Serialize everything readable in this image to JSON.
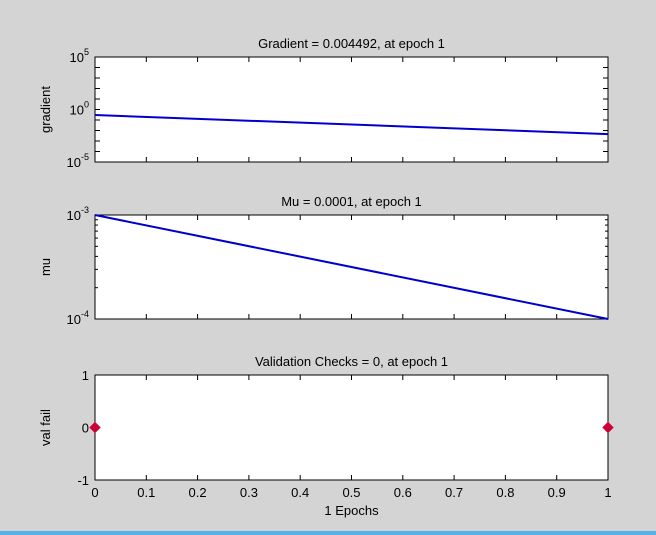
{
  "chart_data": [
    {
      "type": "line",
      "title": "Gradient = 0.004492, at epoch 1",
      "xlabel": "",
      "ylabel": "gradient",
      "yscale": "log",
      "xlim": [
        0,
        1
      ],
      "ylim": [
        1e-05,
        100000.0
      ],
      "yticks": [
        {
          "value": 1e-05,
          "base": "10",
          "exp": "-5"
        },
        {
          "value": 1,
          "base": "10",
          "exp": "0"
        },
        {
          "value": 100000.0,
          "base": "10",
          "exp": "5"
        }
      ],
      "series": [
        {
          "color": "#0000cc",
          "x": [
            0,
            1
          ],
          "y": [
            0.3,
            0.004492
          ]
        }
      ],
      "grid": false
    },
    {
      "type": "line",
      "title": "Mu = 0.0001, at epoch 1",
      "xlabel": "",
      "ylabel": "mu",
      "yscale": "log",
      "xlim": [
        0,
        1
      ],
      "ylim": [
        0.0001,
        0.001
      ],
      "yticks": [
        {
          "value": 0.0001,
          "base": "10",
          "exp": "-4"
        },
        {
          "value": 0.001,
          "base": "10",
          "exp": "-3"
        }
      ],
      "series": [
        {
          "color": "#0000cc",
          "x": [
            0,
            1
          ],
          "y": [
            0.001,
            0.0001
          ]
        }
      ],
      "grid": false
    },
    {
      "type": "scatter",
      "title": "Validation Checks = 0, at epoch 1",
      "xlabel": "1 Epochs",
      "ylabel": "val fail",
      "xlim": [
        0,
        1
      ],
      "ylim": [
        -1,
        1
      ],
      "xticks": [
        "0",
        "0.1",
        "0.2",
        "0.3",
        "0.4",
        "0.5",
        "0.6",
        "0.7",
        "0.8",
        "0.9",
        "1"
      ],
      "yticks": [
        "-1",
        "0",
        "1"
      ],
      "series": [
        {
          "color": "#cc0033",
          "marker": "diamond",
          "x": [
            0,
            1
          ],
          "y": [
            0,
            0
          ]
        }
      ],
      "grid": false
    }
  ],
  "colors": {
    "figure_background": "#d4d4d4",
    "axes_background": "#ffffff",
    "line": "#0000cc",
    "marker": "#cc0033",
    "bottom_border": "#5ab0e8"
  }
}
